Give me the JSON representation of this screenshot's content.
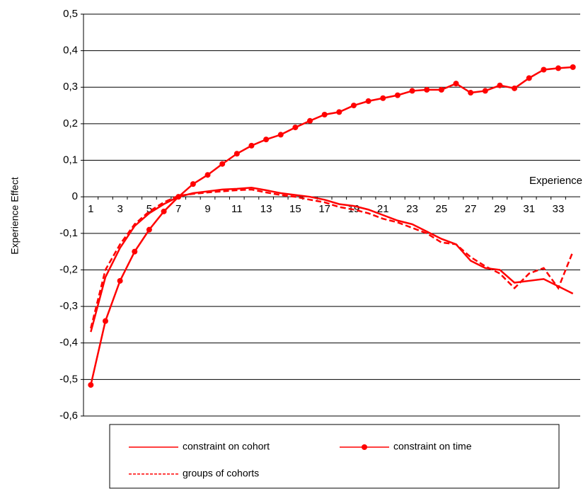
{
  "chart_data": {
    "type": "line",
    "x_label": "Experience",
    "y_label": "Experience Effect",
    "categories": [
      "1",
      null,
      "3",
      null,
      "5",
      null,
      "7",
      null,
      "9",
      null,
      "11",
      null,
      "13",
      null,
      "15",
      null,
      "17",
      null,
      "19",
      null,
      "21",
      null,
      "23",
      null,
      "25",
      null,
      "27",
      null,
      "29",
      null,
      "31",
      null,
      "33",
      null
    ],
    "series": [
      {
        "name": "constraint on cohort",
        "color": "#ff0000",
        "dash": false,
        "marker": false,
        "values": [
          -0.37,
          -0.22,
          -0.14,
          -0.08,
          -0.045,
          -0.02,
          0.0,
          0.01,
          0.015,
          0.02,
          0.022,
          0.025,
          0.018,
          0.01,
          0.005,
          0.0,
          -0.008,
          -0.02,
          -0.025,
          -0.035,
          -0.05,
          -0.065,
          -0.075,
          -0.095,
          -0.115,
          -0.13,
          -0.175,
          -0.195,
          -0.2,
          -0.235,
          -0.23,
          -0.225,
          -0.245,
          -0.265
        ]
      },
      {
        "name": "constraint on time",
        "color": "#ff0000",
        "dash": false,
        "marker": true,
        "values": [
          -0.515,
          -0.34,
          -0.23,
          -0.15,
          -0.09,
          -0.04,
          0.0,
          0.035,
          0.06,
          0.09,
          0.118,
          0.14,
          0.157,
          0.17,
          0.19,
          0.208,
          0.225,
          0.232,
          0.25,
          0.262,
          0.27,
          0.278,
          0.29,
          0.293,
          0.293,
          0.31,
          0.285,
          0.29,
          0.305,
          0.297,
          0.325,
          0.348,
          0.352,
          0.355
        ]
      },
      {
        "name": "groups of cohorts",
        "color": "#ff0000",
        "dash": true,
        "marker": false,
        "values": [
          -0.36,
          -0.2,
          -0.13,
          -0.075,
          -0.04,
          -0.015,
          0.003,
          0.008,
          0.012,
          0.015,
          0.018,
          0.02,
          0.012,
          0.005,
          0.0,
          -0.008,
          -0.015,
          -0.028,
          -0.035,
          -0.045,
          -0.06,
          -0.07,
          -0.085,
          -0.1,
          -0.125,
          -0.13,
          -0.165,
          -0.19,
          -0.21,
          -0.25,
          -0.21,
          -0.195,
          -0.25,
          -0.15
        ]
      }
    ],
    "ylim": [
      -0.6,
      0.5
    ],
    "yticks": [
      {
        "value": -0.6,
        "label": "-0,6"
      },
      {
        "value": -0.5,
        "label": "-0,5"
      },
      {
        "value": -0.4,
        "label": "-0,4"
      },
      {
        "value": -0.3,
        "label": "-0,3"
      },
      {
        "value": -0.2,
        "label": "-0,2"
      },
      {
        "value": -0.1,
        "label": "-0,1"
      },
      0,
      {
        "value": 0.1,
        "label": "0,1"
      },
      {
        "value": 0.2,
        "label": "0,2"
      },
      {
        "value": 0.3,
        "label": "0,3"
      },
      {
        "value": 0.4,
        "label": "0,4"
      },
      {
        "value": 0.5,
        "label": "0,5"
      }
    ],
    "grid": true
  }
}
